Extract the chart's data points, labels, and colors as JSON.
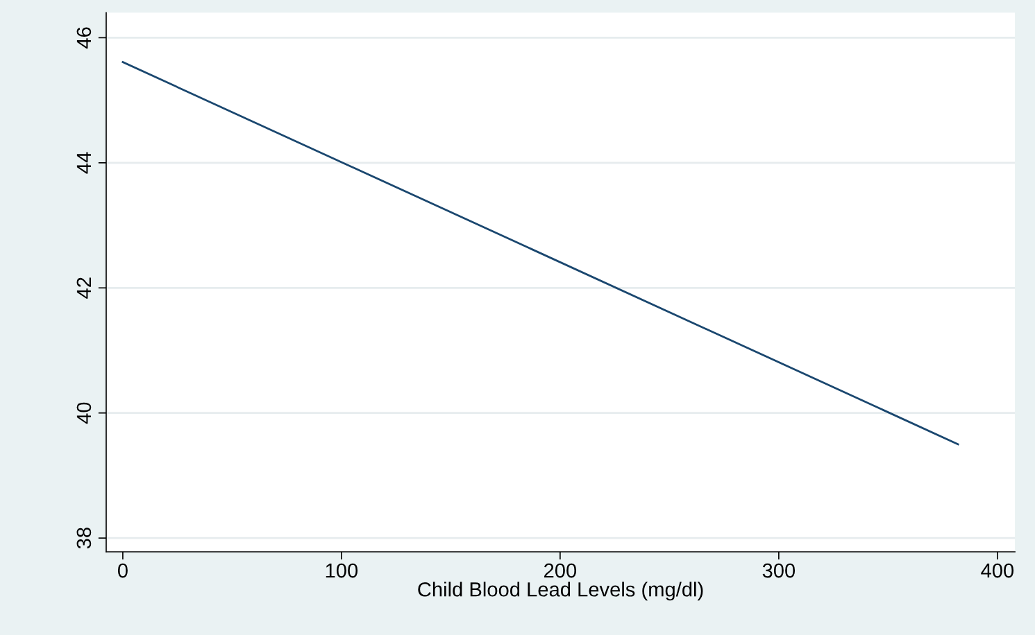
{
  "chart_data": {
    "type": "line",
    "xlabel": "Child Blood Lead Levels (mg/dl)",
    "x": [
      0,
      382
    ],
    "series": [
      {
        "color": "#1a476f",
        "values": [
          45.61,
          39.5
        ]
      }
    ],
    "xlim": [
      -7.6,
      408
    ],
    "xticks": [
      0,
      100,
      200,
      300,
      400
    ],
    "ylim": [
      37.78,
      46.4
    ],
    "yticks": [
      38,
      40,
      42,
      44,
      46
    ],
    "grid": "y",
    "legend": false
  }
}
